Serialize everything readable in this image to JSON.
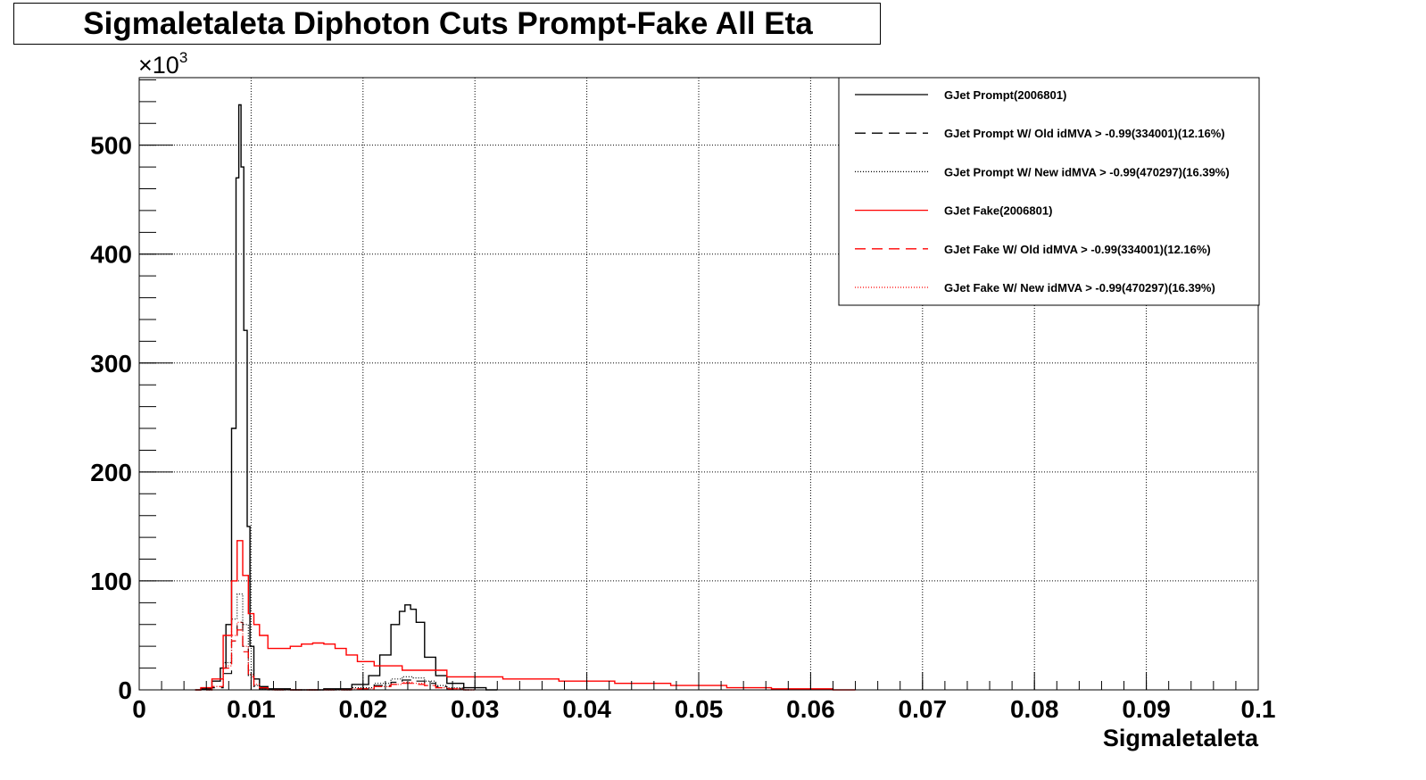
{
  "chart_data": {
    "type": "line",
    "title": "Sigmaletaleta Diphoton Cuts Prompt-Fake All Eta",
    "xlabel": "Sigmaletaleta",
    "ylabel": "",
    "y_multiplier": "×10",
    "y_multiplier_exp": "3",
    "xlim": [
      0,
      0.1
    ],
    "ylim": [
      0,
      562
    ],
    "x_ticks": [
      "0",
      "0.01",
      "0.02",
      "0.03",
      "0.04",
      "0.05",
      "0.06",
      "0.07",
      "0.08",
      "0.09",
      "0.1"
    ],
    "y_ticks": [
      "0",
      "100",
      "200",
      "300",
      "400",
      "500"
    ],
    "grid": true,
    "legend_position": "top-right",
    "series": [
      {
        "name": "GJet Prompt(2006801)",
        "color": "#000000",
        "style": "solid",
        "x": [
          0.005,
          0.006,
          0.007,
          0.0075,
          0.008,
          0.0085,
          0.0088,
          0.009,
          0.0092,
          0.0095,
          0.0098,
          0.01,
          0.0105,
          0.011,
          0.012,
          0.015,
          0.018,
          0.02,
          0.021,
          0.022,
          0.023,
          0.0235,
          0.024,
          0.0245,
          0.025,
          0.026,
          0.027,
          0.028,
          0.03,
          0.032
        ],
        "y": [
          0,
          1,
          8,
          20,
          60,
          240,
          470,
          537,
          480,
          330,
          150,
          40,
          10,
          3,
          1,
          0,
          1,
          5,
          13,
          32,
          60,
          72,
          78,
          74,
          62,
          30,
          13,
          6,
          2,
          0
        ]
      },
      {
        "name": "GJet Prompt W/ Old idMVA > -0.99(334001)(12.16%)",
        "color": "#000000",
        "style": "dashed",
        "x": [
          0.006,
          0.007,
          0.008,
          0.0085,
          0.009,
          0.0095,
          0.01,
          0.0105,
          0.011,
          0.012,
          0.018,
          0.02,
          0.022,
          0.023,
          0.024,
          0.025,
          0.026,
          0.027,
          0.028,
          0.03
        ],
        "y": [
          0,
          2,
          15,
          45,
          62,
          40,
          12,
          3,
          1,
          0,
          0,
          1,
          4,
          7,
          9,
          8,
          6,
          3,
          1,
          0
        ]
      },
      {
        "name": "GJet Prompt W/ New idMVA > -0.99(470297)(16.39%)",
        "color": "#000000",
        "style": "dotted",
        "x": [
          0.006,
          0.007,
          0.008,
          0.0085,
          0.009,
          0.0095,
          0.01,
          0.0105,
          0.011,
          0.012,
          0.018,
          0.02,
          0.022,
          0.023,
          0.024,
          0.025,
          0.026,
          0.027,
          0.028,
          0.03
        ],
        "y": [
          0,
          3,
          25,
          65,
          88,
          60,
          18,
          4,
          1,
          0,
          0,
          2,
          6,
          10,
          12,
          11,
          8,
          4,
          2,
          0
        ]
      },
      {
        "name": "GJet Fake(2006801)",
        "color": "#ff0000",
        "style": "solid",
        "x": [
          0.005,
          0.006,
          0.007,
          0.008,
          0.0085,
          0.009,
          0.0095,
          0.01,
          0.0105,
          0.011,
          0.012,
          0.013,
          0.014,
          0.015,
          0.016,
          0.017,
          0.018,
          0.019,
          0.02,
          0.022,
          0.025,
          0.03,
          0.035,
          0.04,
          0.045,
          0.05,
          0.055,
          0.058,
          0.06,
          0.064
        ],
        "y": [
          0,
          2,
          10,
          50,
          100,
          137,
          105,
          70,
          60,
          50,
          38,
          38,
          40,
          42,
          43,
          42,
          38,
          32,
          26,
          22,
          18,
          12,
          10,
          8,
          6,
          4,
          2,
          1,
          1,
          0
        ]
      },
      {
        "name": "GJet Fake W/ Old idMVA > -0.99(334001)(12.16%)",
        "color": "#ff0000",
        "style": "dashed",
        "x": [
          0.006,
          0.007,
          0.008,
          0.0085,
          0.009,
          0.0095,
          0.01,
          0.0105,
          0.011,
          0.012,
          0.018,
          0.02,
          0.022,
          0.023,
          0.024,
          0.025,
          0.026,
          0.027,
          0.028,
          0.03
        ],
        "y": [
          0,
          3,
          20,
          45,
          55,
          35,
          12,
          4,
          2,
          0,
          0,
          1,
          3,
          5,
          6,
          5,
          4,
          2,
          1,
          0
        ]
      },
      {
        "name": "GJet Fake W/ New idMVA > -0.99(470297)(16.39%)",
        "color": "#ff0000",
        "style": "dotted",
        "x": [
          0.006,
          0.007,
          0.008,
          0.0085,
          0.009,
          0.0095,
          0.01,
          0.0105,
          0.011,
          0.012,
          0.018,
          0.02,
          0.022,
          0.023,
          0.024,
          0.025,
          0.026,
          0.027,
          0.028,
          0.03
        ],
        "y": [
          0,
          3,
          22,
          50,
          62,
          40,
          14,
          5,
          2,
          0,
          0,
          1,
          3,
          5,
          7,
          6,
          4,
          2,
          1,
          0
        ]
      }
    ]
  }
}
